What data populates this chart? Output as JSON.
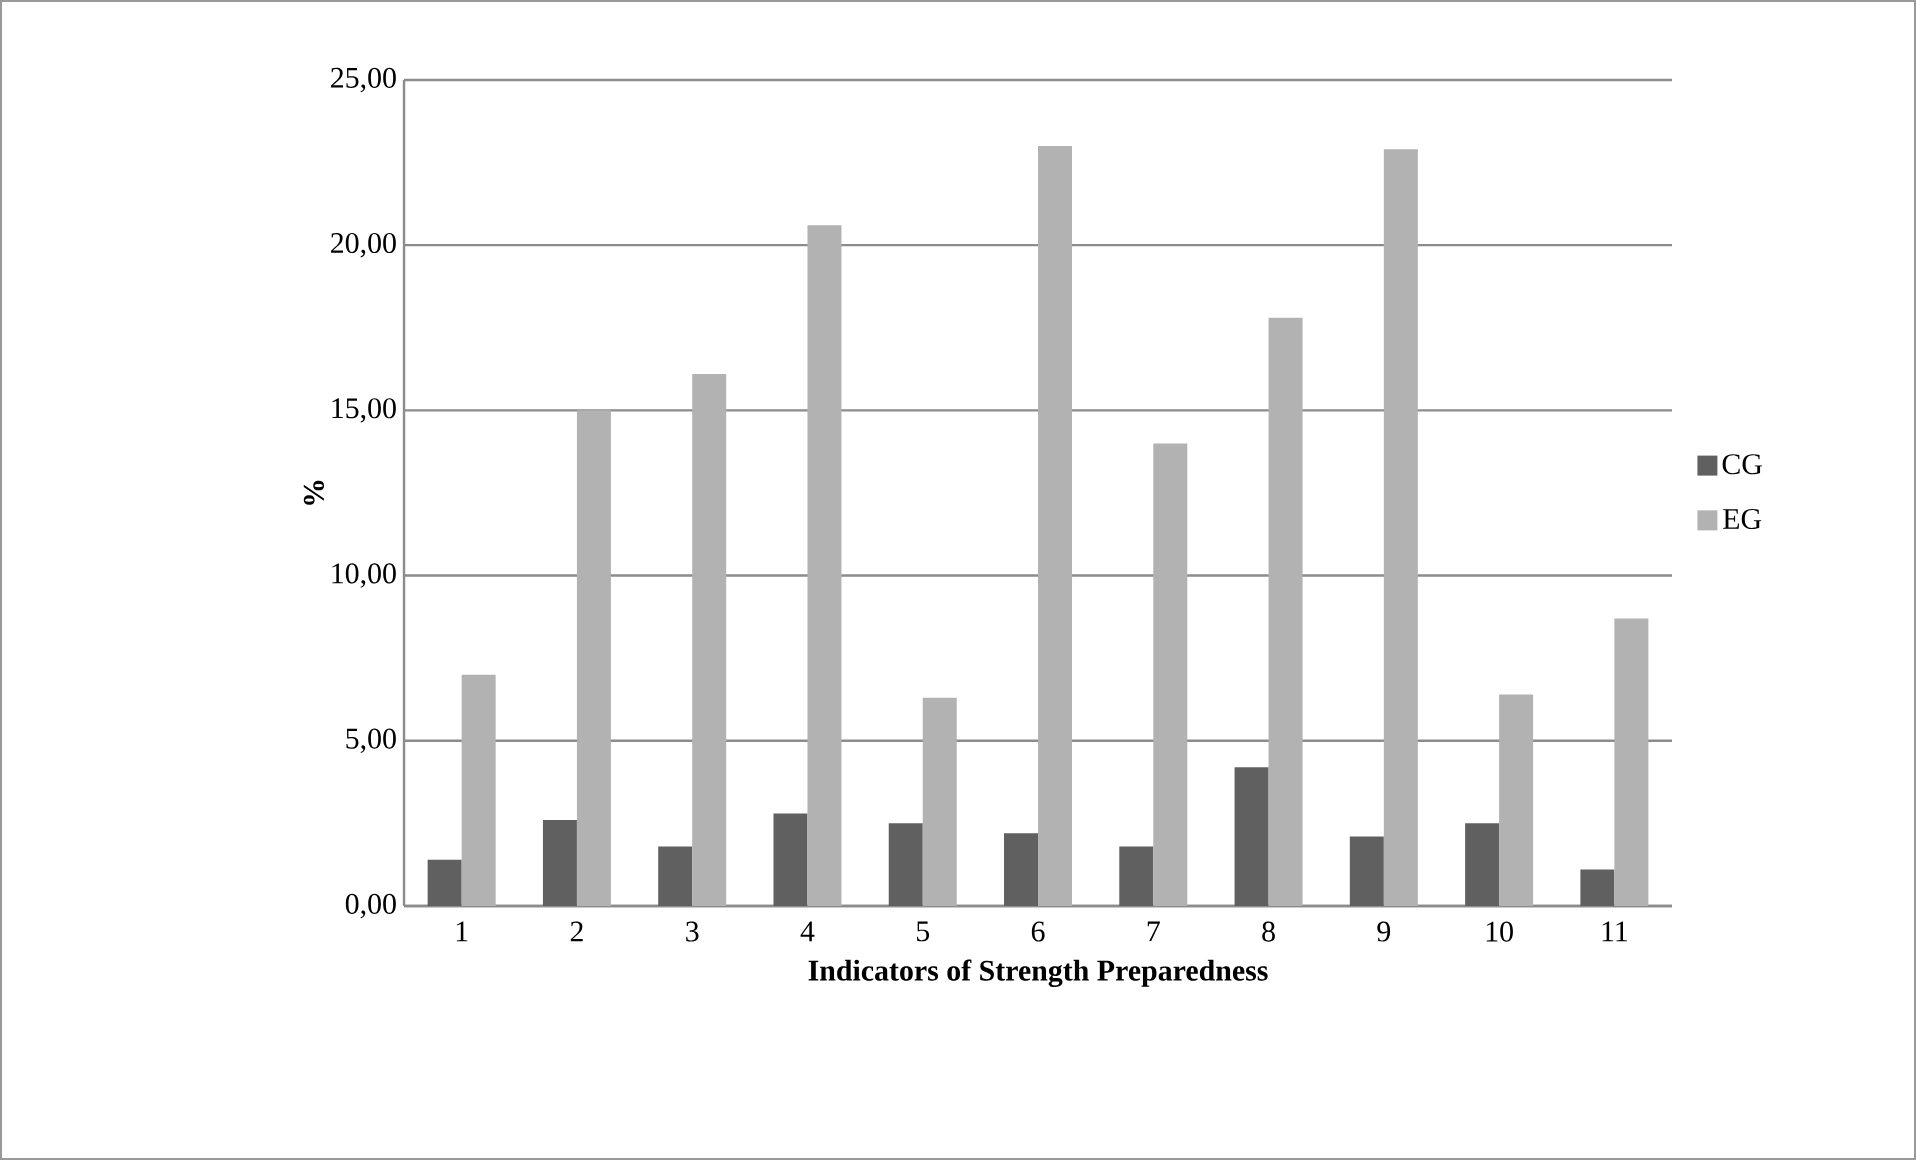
{
  "chart_data": {
    "type": "bar",
    "xlabel": "Indicators of Strength Preparedness",
    "ylabel": "%",
    "categories": [
      "1",
      "2",
      "3",
      "4",
      "5",
      "6",
      "7",
      "8",
      "9",
      "10",
      "11"
    ],
    "series": [
      {
        "name": "CG",
        "color": "#606060",
        "values": [
          1.4,
          2.6,
          1.8,
          2.8,
          2.5,
          2.2,
          1.8,
          4.2,
          2.1,
          2.5,
          1.1
        ]
      },
      {
        "name": "EG",
        "color": "#b2b2b2",
        "values": [
          7.0,
          15.0,
          16.1,
          20.6,
          6.3,
          23.0,
          14.0,
          17.8,
          22.9,
          6.4,
          8.7
        ]
      }
    ],
    "ylim": [
      0,
      25
    ],
    "yticks": [
      {
        "value": 0,
        "label": "0,00"
      },
      {
        "value": 5,
        "label": "5,00"
      },
      {
        "value": 10,
        "label": "10,00"
      },
      {
        "value": 15,
        "label": "15,00"
      },
      {
        "value": 20,
        "label": "20,00"
      },
      {
        "value": 25,
        "label": "25,00"
      }
    ],
    "grid": "y",
    "legend": "right"
  }
}
